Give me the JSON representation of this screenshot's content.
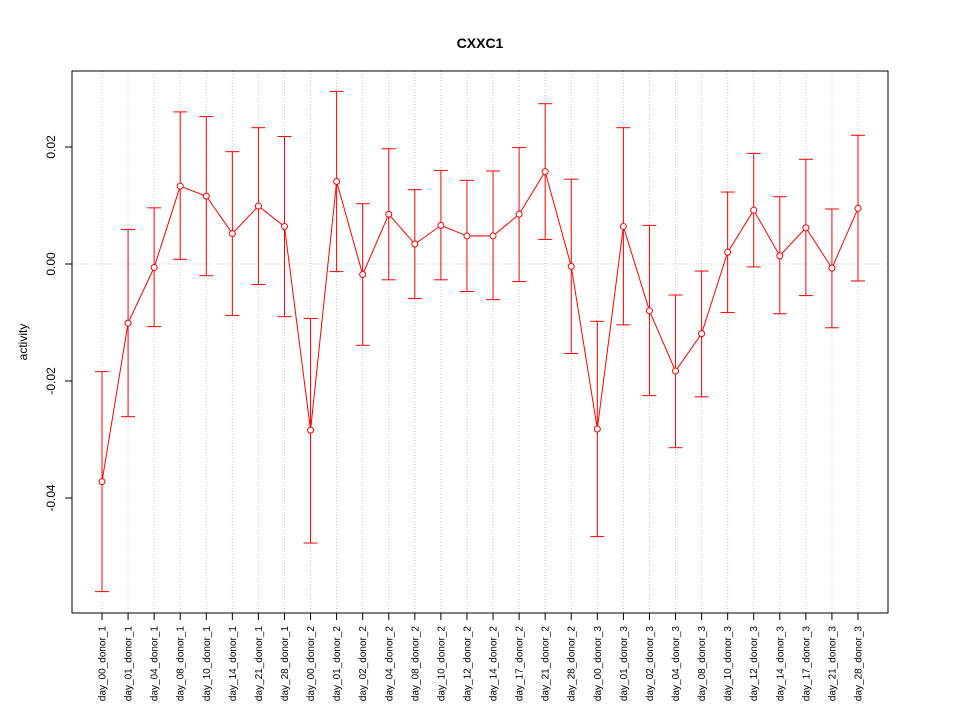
{
  "chart_data": {
    "type": "line",
    "title": "CXXC1",
    "xlabel": "",
    "ylabel": "activity",
    "ylim": [
      -0.06,
      0.033
    ],
    "yticks": [
      -0.04,
      -0.02,
      0.0,
      0.02
    ],
    "ytick_labels": [
      "-0.04",
      "-0.02",
      "0.00",
      "0.02"
    ],
    "grid": true,
    "error_bars": true,
    "series_color": "#ff0000",
    "grid_color": "#c8c8c8",
    "categories": [
      "day_00_donor_1",
      "day_01_donor_1",
      "day_04_donor_1",
      "day_08_donor_1",
      "day_10_donor_1",
      "day_14_donor_1",
      "day_21_donor_1",
      "day_28_donor_1",
      "day_00_donor_2",
      "day_01_donor_2",
      "day_02_donor_2",
      "day_04_donor_2",
      "day_08_donor_2",
      "day_10_donor_2",
      "day_12_donor_2",
      "day_14_donor_2",
      "day_17_donor_2",
      "day_21_donor_2",
      "day_28_donor_2",
      "day_00_donor_3",
      "day_01_donor_3",
      "day_02_donor_3",
      "day_04_donor_3",
      "day_08_donor_3",
      "day_10_donor_3",
      "day_12_donor_3",
      "day_14_donor_3",
      "day_17_donor_3",
      "day_21_donor_3",
      "day_28_donor_3"
    ],
    "series": [
      {
        "values": [
          -0.0372,
          -0.0101,
          -0.0006,
          0.0133,
          0.0116,
          0.0052,
          0.0099,
          0.0064,
          -0.0284,
          0.0141,
          -0.0018,
          0.0085,
          0.0034,
          0.0066,
          0.0048,
          0.0048,
          0.0085,
          0.0158,
          -0.0004,
          -0.0282,
          0.0064,
          -0.008,
          -0.0183,
          -0.0119,
          0.002,
          0.0092,
          0.0014,
          0.0062,
          -0.0007,
          0.0095
        ],
        "lower": [
          -0.056,
          -0.0261,
          -0.0107,
          0.0008,
          -0.002,
          -0.0088,
          -0.0035,
          -0.009,
          -0.0477,
          -0.0013,
          -0.0139,
          -0.0027,
          -0.0059,
          -0.0027,
          -0.0047,
          -0.0061,
          -0.003,
          0.0042,
          -0.0153,
          -0.0466,
          -0.0104,
          -0.0225,
          -0.0314,
          -0.0227,
          -0.0083,
          -0.0005,
          -0.0085,
          -0.0054,
          -0.0109,
          -0.0029
        ],
        "upper": [
          -0.0184,
          0.0059,
          0.0096,
          0.026,
          0.0252,
          0.0192,
          0.0233,
          0.0218,
          -0.0093,
          0.0295,
          0.0103,
          0.0197,
          0.0127,
          0.016,
          0.0143,
          0.0159,
          0.0199,
          0.0274,
          0.0145,
          -0.0098,
          0.0233,
          0.0066,
          -0.0053,
          -0.0012,
          0.0123,
          0.0189,
          0.0115,
          0.0179,
          0.0094,
          0.022
        ]
      }
    ]
  }
}
